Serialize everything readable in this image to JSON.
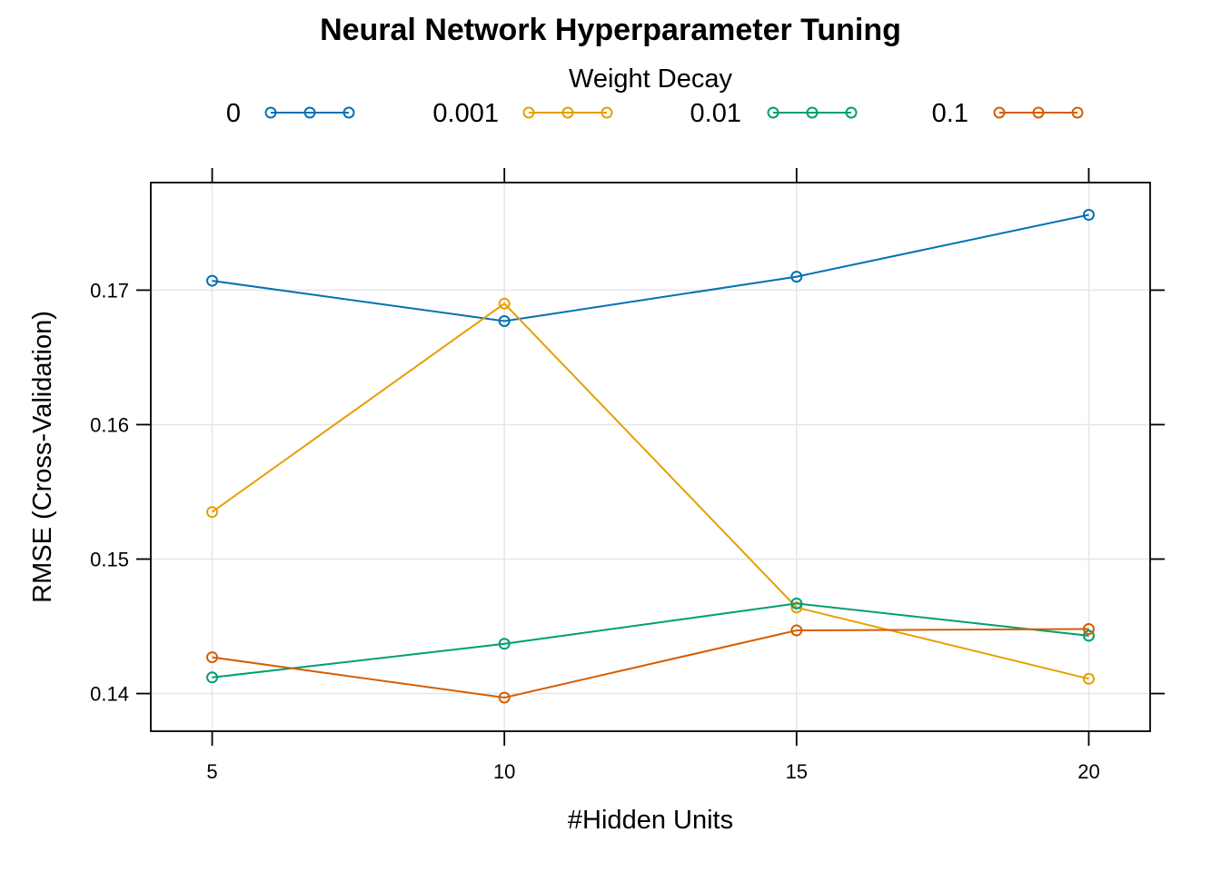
{
  "chart_data": {
    "type": "line",
    "title": "Neural Network Hyperparameter Tuning",
    "xlabel": "#Hidden Units",
    "ylabel": "RMSE (Cross-Validation)",
    "x": [
      5,
      10,
      15,
      20
    ],
    "xticks": [
      "5",
      "10",
      "15",
      "20"
    ],
    "yticks": [
      "0.14",
      "0.15",
      "0.16",
      "0.17"
    ],
    "xlim": [
      3.95,
      21.05
    ],
    "ylim": [
      0.1372,
      0.178
    ],
    "grid": true,
    "legend": {
      "title": "Weight Decay",
      "placement": "top"
    },
    "series": [
      {
        "name": "0",
        "color": "#0072B2",
        "values": [
          0.1707,
          0.1677,
          0.171,
          0.1756
        ]
      },
      {
        "name": "0.001",
        "color": "#E69F00",
        "values": [
          0.1535,
          0.169,
          0.1464,
          0.1411
        ]
      },
      {
        "name": "0.01",
        "color": "#009E73",
        "values": [
          0.1412,
          0.1437,
          0.1467,
          0.1443
        ]
      },
      {
        "name": "0.1",
        "color": "#D55E00",
        "values": [
          0.1427,
          0.1397,
          0.1447,
          0.1448
        ]
      }
    ]
  }
}
